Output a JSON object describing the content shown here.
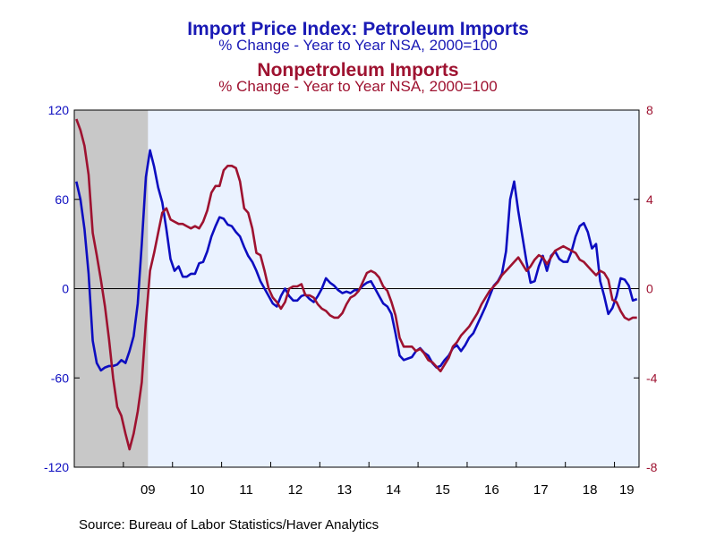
{
  "titles": {
    "left_title": "Import Price Index: Petroleum Imports",
    "left_subtitle": "% Change - Year to Year     NSA, 2000=100",
    "right_title": "Nonpetroleum Imports",
    "right_subtitle": "% Change - Year to Year     NSA, 2000=100"
  },
  "source": "Source:  Bureau of Labor Statistics/Haver Analytics",
  "colors": {
    "petroleum": "#0d0dc0",
    "nonpetroleum": "#9e1230",
    "plot_background": "#eaf2ff",
    "recession_shade": "#c8c8c8"
  },
  "chart_data": {
    "type": "line",
    "x_start": "2008-01",
    "x_end": "2019-06",
    "xtick_labels": [
      "09",
      "10",
      "11",
      "12",
      "13",
      "14",
      "15",
      "16",
      "17",
      "18",
      "19"
    ],
    "y_left": {
      "ylim": [
        -120,
        120
      ],
      "ticks": [
        -120,
        -60,
        0,
        60,
        120
      ]
    },
    "y_right": {
      "ylim": [
        -8,
        8
      ],
      "ticks": [
        -8,
        -4,
        0,
        4,
        8
      ]
    },
    "recession": [
      "2008-01",
      "2009-06"
    ],
    "zero_line": true,
    "series": [
      {
        "axis": "left",
        "points": [
          [
            "2008-01",
            72
          ],
          [
            "2008-02",
            60
          ],
          [
            "2008-03",
            40
          ],
          [
            "2008-04",
            10
          ],
          [
            "2008-05",
            -35
          ],
          [
            "2008-06",
            -50
          ],
          [
            "2008-07",
            -55
          ],
          [
            "2008-08",
            -53
          ],
          [
            "2008-09",
            -52
          ],
          [
            "2008-10",
            -52
          ],
          [
            "2008-11",
            -51
          ],
          [
            "2008-12",
            -48
          ],
          [
            "2009-01",
            -50
          ],
          [
            "2009-02",
            -42
          ],
          [
            "2009-03",
            -32
          ],
          [
            "2009-04",
            -10
          ],
          [
            "2009-05",
            30
          ],
          [
            "2009-06",
            75
          ],
          [
            "2009-07",
            93
          ],
          [
            "2009-08",
            82
          ],
          [
            "2009-09",
            68
          ],
          [
            "2009-10",
            58
          ],
          [
            "2009-11",
            40
          ],
          [
            "2009-12",
            20
          ],
          [
            "2010-01",
            12
          ],
          [
            "2010-02",
            15
          ],
          [
            "2010-03",
            8
          ],
          [
            "2010-04",
            8
          ],
          [
            "2010-05",
            10
          ],
          [
            "2010-06",
            10
          ],
          [
            "2010-07",
            17
          ],
          [
            "2010-08",
            18
          ],
          [
            "2010-09",
            25
          ],
          [
            "2010-10",
            35
          ],
          [
            "2010-11",
            42
          ],
          [
            "2010-12",
            48
          ],
          [
            "2011-01",
            47
          ],
          [
            "2011-02",
            43
          ],
          [
            "2011-03",
            42
          ],
          [
            "2011-04",
            38
          ],
          [
            "2011-05",
            35
          ],
          [
            "2011-06",
            28
          ],
          [
            "2011-07",
            22
          ],
          [
            "2011-08",
            18
          ],
          [
            "2011-09",
            12
          ],
          [
            "2011-10",
            5
          ],
          [
            "2011-11",
            0
          ],
          [
            "2011-12",
            -5
          ],
          [
            "2012-01",
            -10
          ],
          [
            "2012-02",
            -12
          ],
          [
            "2012-03",
            -5
          ],
          [
            "2012-04",
            0
          ],
          [
            "2012-05",
            -5
          ],
          [
            "2012-06",
            -8
          ],
          [
            "2012-07",
            -8
          ],
          [
            "2012-08",
            -5
          ],
          [
            "2012-09",
            -4
          ],
          [
            "2012-10",
            -7
          ],
          [
            "2012-11",
            -9
          ],
          [
            "2012-12",
            -5
          ],
          [
            "2013-01",
            0
          ],
          [
            "2013-02",
            7
          ],
          [
            "2013-03",
            4
          ],
          [
            "2013-04",
            2
          ],
          [
            "2013-05",
            -1
          ],
          [
            "2013-06",
            -3
          ],
          [
            "2013-07",
            -2
          ],
          [
            "2013-08",
            -3
          ],
          [
            "2013-09",
            -1
          ],
          [
            "2013-10",
            -1
          ],
          [
            "2013-11",
            2
          ],
          [
            "2013-12",
            4
          ],
          [
            "2014-01",
            5
          ],
          [
            "2014-02",
            0
          ],
          [
            "2014-03",
            -5
          ],
          [
            "2014-04",
            -10
          ],
          [
            "2014-05",
            -12
          ],
          [
            "2014-06",
            -17
          ],
          [
            "2014-07",
            -30
          ],
          [
            "2014-08",
            -45
          ],
          [
            "2014-09",
            -48
          ],
          [
            "2014-10",
            -47
          ],
          [
            "2014-11",
            -46
          ],
          [
            "2014-12",
            -42
          ],
          [
            "2015-01",
            -40
          ],
          [
            "2015-02",
            -43
          ],
          [
            "2015-03",
            -45
          ],
          [
            "2015-04",
            -50
          ],
          [
            "2015-05",
            -53
          ],
          [
            "2015-06",
            -52
          ],
          [
            "2015-07",
            -48
          ],
          [
            "2015-08",
            -45
          ],
          [
            "2015-09",
            -40
          ],
          [
            "2015-10",
            -38
          ],
          [
            "2015-11",
            -42
          ],
          [
            "2015-12",
            -38
          ],
          [
            "2016-01",
            -33
          ],
          [
            "2016-02",
            -30
          ],
          [
            "2016-03",
            -24
          ],
          [
            "2016-04",
            -18
          ],
          [
            "2016-05",
            -12
          ],
          [
            "2016-06",
            -5
          ],
          [
            "2016-07",
            2
          ],
          [
            "2016-08",
            5
          ],
          [
            "2016-09",
            10
          ],
          [
            "2016-10",
            25
          ],
          [
            "2016-11",
            60
          ],
          [
            "2016-12",
            72
          ],
          [
            "2017-01",
            52
          ],
          [
            "2017-02",
            35
          ],
          [
            "2017-03",
            18
          ],
          [
            "2017-04",
            4
          ],
          [
            "2017-05",
            5
          ],
          [
            "2017-06",
            15
          ],
          [
            "2017-07",
            22
          ],
          [
            "2017-08",
            12
          ],
          [
            "2017-09",
            22
          ],
          [
            "2017-10",
            25
          ],
          [
            "2017-11",
            20
          ],
          [
            "2017-12",
            18
          ],
          [
            "2018-01",
            18
          ],
          [
            "2018-02",
            25
          ],
          [
            "2018-03",
            35
          ],
          [
            "2018-04",
            42
          ],
          [
            "2018-05",
            44
          ],
          [
            "2018-06",
            38
          ],
          [
            "2018-07",
            27
          ],
          [
            "2018-08",
            30
          ],
          [
            "2018-09",
            5
          ],
          [
            "2018-10",
            -5
          ],
          [
            "2018-11",
            -17
          ],
          [
            "2018-12",
            -13
          ],
          [
            "2019-01",
            -5
          ],
          [
            "2019-02",
            7
          ],
          [
            "2019-03",
            6
          ],
          [
            "2019-04",
            2
          ],
          [
            "2019-05",
            -8
          ],
          [
            "2019-06",
            -7
          ]
        ]
      },
      {
        "axis": "right",
        "points": [
          [
            "2008-01",
            7.6
          ],
          [
            "2008-02",
            7.1
          ],
          [
            "2008-03",
            6.4
          ],
          [
            "2008-04",
            5.1
          ],
          [
            "2008-05",
            2.5
          ],
          [
            "2008-06",
            1.5
          ],
          [
            "2008-07",
            0.4
          ],
          [
            "2008-08",
            -0.8
          ],
          [
            "2008-09",
            -2.3
          ],
          [
            "2008-10",
            -4.0
          ],
          [
            "2008-11",
            -5.3
          ],
          [
            "2008-12",
            -5.7
          ],
          [
            "2009-01",
            -6.5
          ],
          [
            "2009-02",
            -7.2
          ],
          [
            "2009-03",
            -6.5
          ],
          [
            "2009-04",
            -5.5
          ],
          [
            "2009-05",
            -4.2
          ],
          [
            "2009-06",
            -1.5
          ],
          [
            "2009-07",
            0.8
          ],
          [
            "2009-08",
            1.6
          ],
          [
            "2009-09",
            2.5
          ],
          [
            "2009-10",
            3.4
          ],
          [
            "2009-11",
            3.6
          ],
          [
            "2009-12",
            3.1
          ],
          [
            "2010-01",
            3.0
          ],
          [
            "2010-02",
            2.9
          ],
          [
            "2010-03",
            2.9
          ],
          [
            "2010-04",
            2.8
          ],
          [
            "2010-05",
            2.7
          ],
          [
            "2010-06",
            2.8
          ],
          [
            "2010-07",
            2.7
          ],
          [
            "2010-08",
            3.0
          ],
          [
            "2010-09",
            3.5
          ],
          [
            "2010-10",
            4.3
          ],
          [
            "2010-11",
            4.6
          ],
          [
            "2010-12",
            4.6
          ],
          [
            "2011-01",
            5.3
          ],
          [
            "2011-02",
            5.5
          ],
          [
            "2011-03",
            5.5
          ],
          [
            "2011-04",
            5.4
          ],
          [
            "2011-05",
            4.8
          ],
          [
            "2011-06",
            3.6
          ],
          [
            "2011-07",
            3.4
          ],
          [
            "2011-08",
            2.7
          ],
          [
            "2011-09",
            1.6
          ],
          [
            "2011-10",
            1.5
          ],
          [
            "2011-11",
            0.8
          ],
          [
            "2011-12",
            0.0
          ],
          [
            "2012-01",
            -0.4
          ],
          [
            "2012-02",
            -0.6
          ],
          [
            "2012-03",
            -0.9
          ],
          [
            "2012-04",
            -0.6
          ],
          [
            "2012-05",
            0.0
          ],
          [
            "2012-06",
            0.1
          ],
          [
            "2012-07",
            0.1
          ],
          [
            "2012-08",
            0.2
          ],
          [
            "2012-09",
            -0.3
          ],
          [
            "2012-10",
            -0.3
          ],
          [
            "2012-11",
            -0.4
          ],
          [
            "2012-12",
            -0.7
          ],
          [
            "2013-01",
            -0.9
          ],
          [
            "2013-02",
            -1.0
          ],
          [
            "2013-03",
            -1.2
          ],
          [
            "2013-04",
            -1.3
          ],
          [
            "2013-05",
            -1.3
          ],
          [
            "2013-06",
            -1.1
          ],
          [
            "2013-07",
            -0.7
          ],
          [
            "2013-08",
            -0.4
          ],
          [
            "2013-09",
            -0.3
          ],
          [
            "2013-10",
            -0.1
          ],
          [
            "2013-11",
            0.3
          ],
          [
            "2013-12",
            0.7
          ],
          [
            "2014-01",
            0.8
          ],
          [
            "2014-02",
            0.7
          ],
          [
            "2014-03",
            0.5
          ],
          [
            "2014-04",
            0.1
          ],
          [
            "2014-05",
            -0.1
          ],
          [
            "2014-06",
            -0.6
          ],
          [
            "2014-07",
            -1.2
          ],
          [
            "2014-08",
            -2.2
          ],
          [
            "2014-09",
            -2.6
          ],
          [
            "2014-10",
            -2.6
          ],
          [
            "2014-11",
            -2.6
          ],
          [
            "2014-12",
            -2.8
          ],
          [
            "2015-01",
            -2.7
          ],
          [
            "2015-02",
            -2.9
          ],
          [
            "2015-03",
            -3.2
          ],
          [
            "2015-04",
            -3.3
          ],
          [
            "2015-05",
            -3.5
          ],
          [
            "2015-06",
            -3.7
          ],
          [
            "2015-07",
            -3.4
          ],
          [
            "2015-08",
            -3.1
          ],
          [
            "2015-09",
            -2.6
          ],
          [
            "2015-10",
            -2.4
          ],
          [
            "2015-11",
            -2.1
          ],
          [
            "2015-12",
            -1.9
          ],
          [
            "2016-01",
            -1.7
          ],
          [
            "2016-02",
            -1.4
          ],
          [
            "2016-03",
            -1.1
          ],
          [
            "2016-04",
            -0.7
          ],
          [
            "2016-05",
            -0.4
          ],
          [
            "2016-06",
            -0.1
          ],
          [
            "2016-07",
            0.1
          ],
          [
            "2016-08",
            0.3
          ],
          [
            "2016-09",
            0.6
          ],
          [
            "2016-10",
            0.8
          ],
          [
            "2016-11",
            1.0
          ],
          [
            "2016-12",
            1.2
          ],
          [
            "2017-01",
            1.4
          ],
          [
            "2017-02",
            1.1
          ],
          [
            "2017-03",
            0.8
          ],
          [
            "2017-04",
            1.0
          ],
          [
            "2017-05",
            1.3
          ],
          [
            "2017-06",
            1.5
          ],
          [
            "2017-07",
            1.4
          ],
          [
            "2017-08",
            1.1
          ],
          [
            "2017-09",
            1.4
          ],
          [
            "2017-10",
            1.7
          ],
          [
            "2017-11",
            1.8
          ],
          [
            "2017-12",
            1.9
          ],
          [
            "2018-01",
            1.8
          ],
          [
            "2018-02",
            1.7
          ],
          [
            "2018-03",
            1.6
          ],
          [
            "2018-04",
            1.3
          ],
          [
            "2018-05",
            1.2
          ],
          [
            "2018-06",
            1.0
          ],
          [
            "2018-07",
            0.8
          ],
          [
            "2018-08",
            0.6
          ],
          [
            "2018-09",
            0.8
          ],
          [
            "2018-10",
            0.7
          ],
          [
            "2018-11",
            0.4
          ],
          [
            "2018-12",
            -0.5
          ],
          [
            "2019-01",
            -0.6
          ],
          [
            "2019-02",
            -1.0
          ],
          [
            "2019-03",
            -1.3
          ],
          [
            "2019-04",
            -1.4
          ],
          [
            "2019-05",
            -1.3
          ],
          [
            "2019-06",
            -1.3
          ]
        ]
      }
    ]
  }
}
